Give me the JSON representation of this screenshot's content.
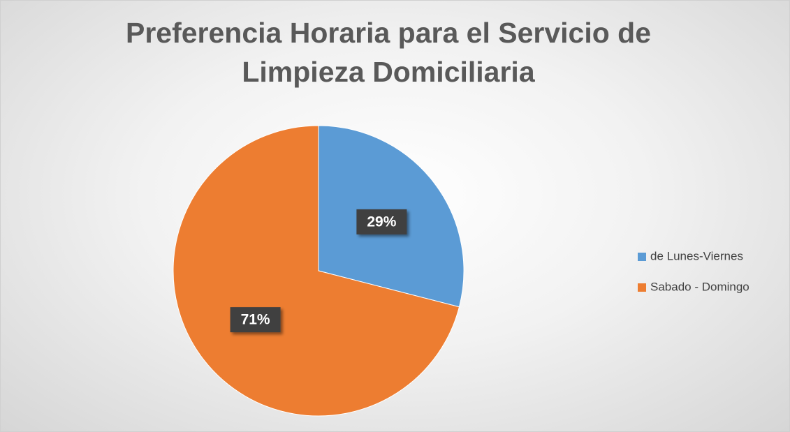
{
  "chart_data": {
    "type": "pie",
    "title": "Preferencia Horaria para el Servicio de Limpieza Domiciliaria",
    "categories": [
      "de Lunes-Viernes",
      "Sabado - Domingo"
    ],
    "values": [
      29,
      71
    ],
    "value_labels": [
      "29%",
      "71%"
    ],
    "colors": [
      "#5b9bd5",
      "#ed7d31"
    ],
    "legend": "right"
  }
}
